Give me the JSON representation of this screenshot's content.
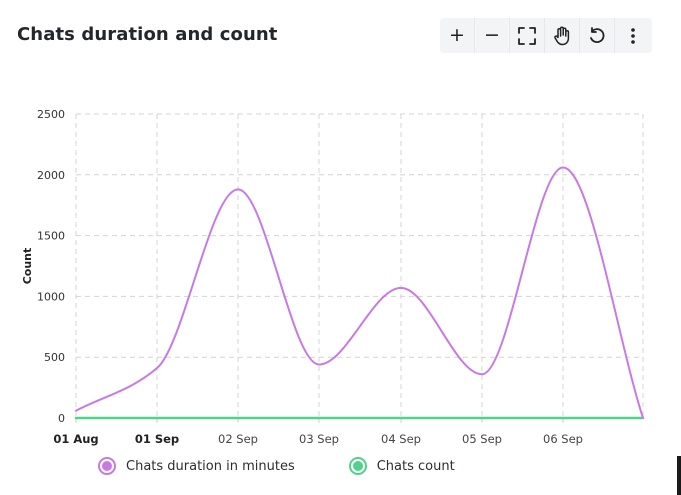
{
  "card": {
    "title": "Chats duration and count"
  },
  "toolbar": {
    "buttons": [
      {
        "name": "zoom-in-button",
        "icon": "plus-icon",
        "glyph": "+"
      },
      {
        "name": "zoom-out-button",
        "icon": "minus-icon",
        "glyph": "−"
      },
      {
        "name": "fit-view-button",
        "icon": "frame-icon"
      },
      {
        "name": "pan-button",
        "icon": "hand-icon"
      },
      {
        "name": "reset-button",
        "icon": "undo-icon"
      },
      {
        "name": "menu-button",
        "icon": "kebab-menu-icon"
      }
    ]
  },
  "colors": {
    "duration": "#c77ae2",
    "count": "#4fd38a",
    "grid": "#d4d4d4",
    "axis_text": "#333333"
  },
  "chart_data": {
    "type": "line",
    "ylabel": "Count",
    "xlabel": "",
    "ylim": [
      0,
      2500
    ],
    "y_ticks": [
      0,
      500,
      1000,
      1500,
      2000,
      2500
    ],
    "x": [
      "01 Aug",
      "01 Sep",
      "02 Sep",
      "03 Sep",
      "04 Sep",
      "05 Sep",
      "06 Sep",
      ""
    ],
    "x_tick_labels": [
      "01 Aug",
      "01 Sep",
      "02 Sep",
      "03 Sep",
      "04 Sep",
      "05 Sep",
      "06 Sep"
    ],
    "grid": true,
    "legend_position": "bottom",
    "series": [
      {
        "name": "Chats duration in minutes",
        "values": [
          60,
          410,
          1880,
          440,
          1070,
          360,
          2060,
          0
        ]
      },
      {
        "name": "Chats count",
        "values": [
          0,
          0,
          0,
          0,
          0,
          0,
          0,
          0
        ]
      }
    ]
  }
}
